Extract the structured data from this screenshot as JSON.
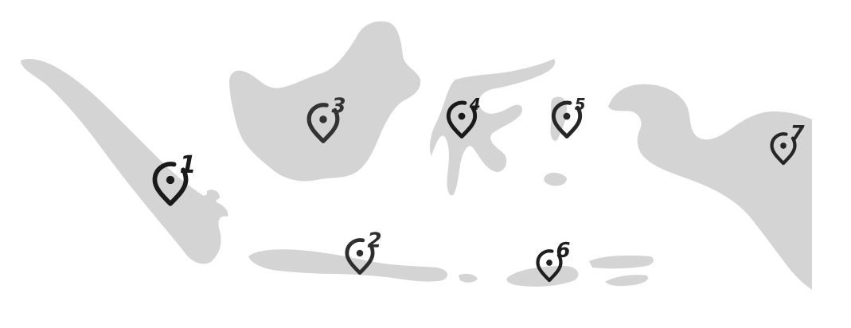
{
  "map": {
    "colors": {
      "land": "#d4d4d4",
      "background": "#ffffff"
    },
    "markers": [
      {
        "label": "1",
        "color": "#1a1a1a"
      },
      {
        "label": "2",
        "color": "#2e2e2e"
      },
      {
        "label": "3",
        "color": "#333333"
      },
      {
        "label": "4",
        "color": "#1a1a1a"
      },
      {
        "label": "5",
        "color": "#262626"
      },
      {
        "label": "6",
        "color": "#1f1f1f"
      },
      {
        "label": "7",
        "color": "#262626"
      }
    ]
  }
}
